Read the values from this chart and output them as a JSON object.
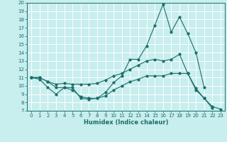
{
  "xlabel": "Humidex (Indice chaleur)",
  "bg_color": "#c8eeee",
  "grid_color": "#aadddd",
  "line_color": "#1a6e6a",
  "xlim": [
    -0.5,
    23.5
  ],
  "ylim": [
    7,
    20
  ],
  "yticks": [
    7,
    8,
    9,
    10,
    11,
    12,
    13,
    14,
    15,
    16,
    17,
    18,
    19,
    20
  ],
  "xticks": [
    0,
    1,
    2,
    3,
    4,
    5,
    6,
    7,
    8,
    9,
    10,
    11,
    12,
    13,
    14,
    15,
    16,
    17,
    18,
    19,
    20,
    21,
    22,
    23
  ],
  "line1_x": [
    0,
    1,
    2,
    3,
    4,
    5,
    6,
    7,
    8,
    9,
    10,
    11,
    12,
    13,
    14,
    15,
    16,
    17,
    18,
    19,
    20,
    21
  ],
  "line1_y": [
    11.0,
    10.8,
    9.8,
    9.0,
    9.8,
    9.8,
    8.5,
    8.4,
    8.5,
    9.2,
    10.4,
    11.2,
    13.2,
    13.2,
    14.8,
    17.3,
    19.8,
    16.5,
    18.3,
    16.3,
    14.0,
    9.8
  ],
  "line2_x": [
    0,
    1,
    2,
    3,
    4,
    5,
    6,
    7,
    8,
    9,
    10,
    11,
    12,
    13,
    14,
    15,
    16,
    17,
    18,
    19,
    20,
    21,
    22
  ],
  "line2_y": [
    11.0,
    11.0,
    10.5,
    10.2,
    10.3,
    10.2,
    10.2,
    10.2,
    10.3,
    10.7,
    11.2,
    11.5,
    12.0,
    12.5,
    13.0,
    13.2,
    13.0,
    13.2,
    13.8,
    11.5,
    9.7,
    8.5,
    7.3
  ],
  "line3_x": [
    0,
    1,
    2,
    3,
    4,
    5,
    6,
    7,
    8,
    9,
    10,
    11,
    12,
    13,
    14,
    15,
    16,
    17,
    18,
    19,
    20,
    21,
    22,
    23
  ],
  "line3_y": [
    11.0,
    11.0,
    10.5,
    9.8,
    9.8,
    9.5,
    8.7,
    8.5,
    8.5,
    8.8,
    9.5,
    10.0,
    10.5,
    10.8,
    11.2,
    11.2,
    11.2,
    11.5,
    11.5,
    11.5,
    9.5,
    8.5,
    7.5,
    7.2
  ]
}
